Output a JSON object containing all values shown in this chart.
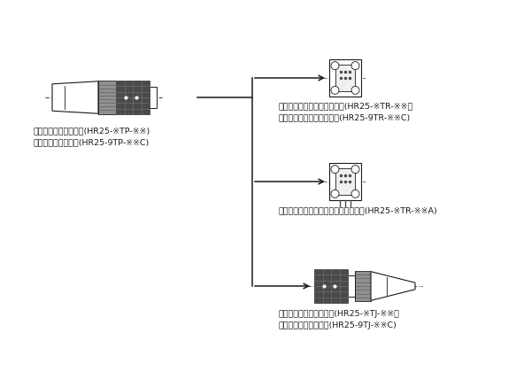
{
  "bg_color": "#ffffff",
  "line_color": "#1a1a1a",
  "dark_gray": "#4a4a4a",
  "mid_gray": "#909090",
  "light_gray": "#d8d8d8",
  "very_light_gray": "#f0f0f0",
  "text_color": "#1a1a1a",
  "plug_label1": "はんだタイプ　プラグ(HR25-※TP-※※)",
  "plug_label2": "圧着タイプ　プラグ(HR25-9TP-※※C)",
  "receptacle1_label1": "はんだタイプ　レセプタクル(HR25-※TR-※※）",
  "receptacle1_label2": "圧着タイプ　レセプタクル(HR25-9TR-※※C)",
  "receptacle2_label1": "基板直付け結線タイプ　レセプタクル(HR25-※TR-※※A)",
  "jack_label1": "はんだタイプ　ジャック(HR25-※TJ-※※）",
  "jack_label2": "圧着タイプ　ジャック(HR25-9TJ-※※C)",
  "font_size": 6.8,
  "fig_width": 5.83,
  "fig_height": 4.37
}
